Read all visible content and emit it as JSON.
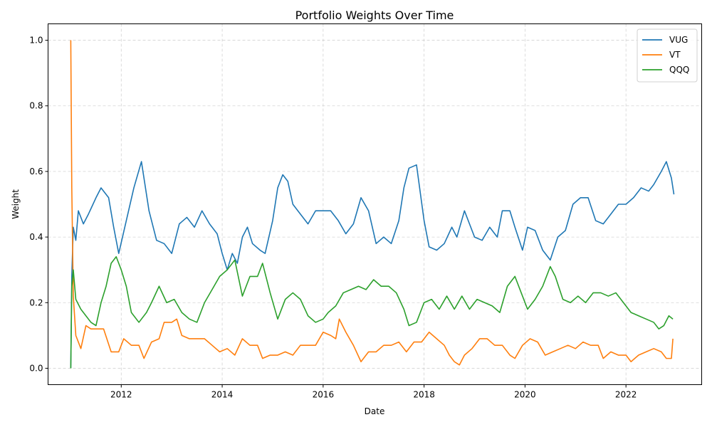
{
  "chart_data": {
    "type": "line",
    "title": "Portfolio Weights Over Time",
    "xlabel": "Date",
    "ylabel": "Weight",
    "xlim": [
      2010.55,
      2023.5
    ],
    "ylim": [
      -0.05,
      1.05
    ],
    "x_ticks": [
      2012,
      2014,
      2016,
      2018,
      2020,
      2022
    ],
    "x_tick_labels": [
      "2012",
      "2014",
      "2016",
      "2018",
      "2020",
      "2022"
    ],
    "y_ticks": [
      0.0,
      0.2,
      0.4,
      0.6,
      0.8,
      1.0
    ],
    "y_tick_labels": [
      "0.0",
      "0.2",
      "0.4",
      "0.6",
      "0.8",
      "1.0"
    ],
    "grid": true,
    "legend_position": "top-right",
    "series": [
      {
        "name": "VUG",
        "color": "#1f77b4",
        "points": [
          [
            2011.0,
            0.0
          ],
          [
            2011.02,
            0.28
          ],
          [
            2011.05,
            0.43
          ],
          [
            2011.1,
            0.39
          ],
          [
            2011.15,
            0.48
          ],
          [
            2011.25,
            0.44
          ],
          [
            2011.35,
            0.47
          ],
          [
            2011.5,
            0.52
          ],
          [
            2011.6,
            0.55
          ],
          [
            2011.75,
            0.52
          ],
          [
            2011.85,
            0.43
          ],
          [
            2011.95,
            0.35
          ],
          [
            2012.1,
            0.45
          ],
          [
            2012.25,
            0.55
          ],
          [
            2012.4,
            0.63
          ],
          [
            2012.55,
            0.48
          ],
          [
            2012.7,
            0.39
          ],
          [
            2012.85,
            0.38
          ],
          [
            2013.0,
            0.35
          ],
          [
            2013.15,
            0.44
          ],
          [
            2013.3,
            0.46
          ],
          [
            2013.45,
            0.43
          ],
          [
            2013.6,
            0.48
          ],
          [
            2013.75,
            0.44
          ],
          [
            2013.9,
            0.41
          ],
          [
            2014.0,
            0.35
          ],
          [
            2014.1,
            0.3
          ],
          [
            2014.2,
            0.35
          ],
          [
            2014.3,
            0.32
          ],
          [
            2014.4,
            0.4
          ],
          [
            2014.5,
            0.43
          ],
          [
            2014.6,
            0.38
          ],
          [
            2014.75,
            0.36
          ],
          [
            2014.85,
            0.35
          ],
          [
            2015.0,
            0.45
          ],
          [
            2015.1,
            0.55
          ],
          [
            2015.2,
            0.59
          ],
          [
            2015.3,
            0.57
          ],
          [
            2015.4,
            0.5
          ],
          [
            2015.55,
            0.47
          ],
          [
            2015.7,
            0.44
          ],
          [
            2015.85,
            0.48
          ],
          [
            2016.0,
            0.48
          ],
          [
            2016.15,
            0.48
          ],
          [
            2016.3,
            0.45
          ],
          [
            2016.45,
            0.41
          ],
          [
            2016.6,
            0.44
          ],
          [
            2016.75,
            0.52
          ],
          [
            2016.9,
            0.48
          ],
          [
            2017.05,
            0.38
          ],
          [
            2017.2,
            0.4
          ],
          [
            2017.35,
            0.38
          ],
          [
            2017.5,
            0.45
          ],
          [
            2017.6,
            0.55
          ],
          [
            2017.7,
            0.61
          ],
          [
            2017.85,
            0.62
          ],
          [
            2018.0,
            0.45
          ],
          [
            2018.1,
            0.37
          ],
          [
            2018.25,
            0.36
          ],
          [
            2018.4,
            0.38
          ],
          [
            2018.55,
            0.43
          ],
          [
            2018.65,
            0.4
          ],
          [
            2018.8,
            0.48
          ],
          [
            2018.9,
            0.44
          ],
          [
            2019.0,
            0.4
          ],
          [
            2019.15,
            0.39
          ],
          [
            2019.3,
            0.43
          ],
          [
            2019.45,
            0.4
          ],
          [
            2019.55,
            0.48
          ],
          [
            2019.7,
            0.48
          ],
          [
            2019.8,
            0.43
          ],
          [
            2019.95,
            0.36
          ],
          [
            2020.05,
            0.43
          ],
          [
            2020.2,
            0.42
          ],
          [
            2020.35,
            0.36
          ],
          [
            2020.5,
            0.33
          ],
          [
            2020.65,
            0.4
          ],
          [
            2020.8,
            0.42
          ],
          [
            2020.95,
            0.5
          ],
          [
            2021.1,
            0.52
          ],
          [
            2021.25,
            0.52
          ],
          [
            2021.4,
            0.45
          ],
          [
            2021.55,
            0.44
          ],
          [
            2021.7,
            0.47
          ],
          [
            2021.85,
            0.5
          ],
          [
            2022.0,
            0.5
          ],
          [
            2022.15,
            0.52
          ],
          [
            2022.3,
            0.55
          ],
          [
            2022.45,
            0.54
          ],
          [
            2022.55,
            0.56
          ],
          [
            2022.7,
            0.6
          ],
          [
            2022.8,
            0.63
          ],
          [
            2022.9,
            0.58
          ],
          [
            2022.95,
            0.53
          ]
        ]
      },
      {
        "name": "VT",
        "color": "#ff7f0e",
        "points": [
          [
            2011.0,
            1.0
          ],
          [
            2011.02,
            0.55
          ],
          [
            2011.05,
            0.22
          ],
          [
            2011.1,
            0.1
          ],
          [
            2011.2,
            0.06
          ],
          [
            2011.3,
            0.13
          ],
          [
            2011.4,
            0.12
          ],
          [
            2011.5,
            0.12
          ],
          [
            2011.65,
            0.12
          ],
          [
            2011.8,
            0.05
          ],
          [
            2011.95,
            0.05
          ],
          [
            2012.05,
            0.09
          ],
          [
            2012.2,
            0.07
          ],
          [
            2012.35,
            0.07
          ],
          [
            2012.45,
            0.03
          ],
          [
            2012.6,
            0.08
          ],
          [
            2012.75,
            0.09
          ],
          [
            2012.85,
            0.14
          ],
          [
            2013.0,
            0.14
          ],
          [
            2013.1,
            0.15
          ],
          [
            2013.2,
            0.1
          ],
          [
            2013.35,
            0.09
          ],
          [
            2013.5,
            0.09
          ],
          [
            2013.65,
            0.09
          ],
          [
            2013.8,
            0.07
          ],
          [
            2013.95,
            0.05
          ],
          [
            2014.1,
            0.06
          ],
          [
            2014.25,
            0.04
          ],
          [
            2014.4,
            0.09
          ],
          [
            2014.55,
            0.07
          ],
          [
            2014.7,
            0.07
          ],
          [
            2014.8,
            0.03
          ],
          [
            2014.95,
            0.04
          ],
          [
            2015.1,
            0.04
          ],
          [
            2015.25,
            0.05
          ],
          [
            2015.4,
            0.04
          ],
          [
            2015.55,
            0.07
          ],
          [
            2015.7,
            0.07
          ],
          [
            2015.85,
            0.07
          ],
          [
            2016.0,
            0.11
          ],
          [
            2016.15,
            0.1
          ],
          [
            2016.25,
            0.09
          ],
          [
            2016.32,
            0.15
          ],
          [
            2016.45,
            0.11
          ],
          [
            2016.6,
            0.07
          ],
          [
            2016.75,
            0.02
          ],
          [
            2016.9,
            0.05
          ],
          [
            2017.05,
            0.05
          ],
          [
            2017.2,
            0.07
          ],
          [
            2017.35,
            0.07
          ],
          [
            2017.5,
            0.08
          ],
          [
            2017.65,
            0.05
          ],
          [
            2017.8,
            0.08
          ],
          [
            2017.95,
            0.08
          ],
          [
            2018.1,
            0.11
          ],
          [
            2018.25,
            0.09
          ],
          [
            2018.4,
            0.07
          ],
          [
            2018.5,
            0.04
          ],
          [
            2018.6,
            0.02
          ],
          [
            2018.7,
            0.01
          ],
          [
            2018.8,
            0.04
          ],
          [
            2018.95,
            0.06
          ],
          [
            2019.1,
            0.09
          ],
          [
            2019.25,
            0.09
          ],
          [
            2019.4,
            0.07
          ],
          [
            2019.55,
            0.07
          ],
          [
            2019.7,
            0.04
          ],
          [
            2019.8,
            0.03
          ],
          [
            2019.95,
            0.07
          ],
          [
            2020.1,
            0.09
          ],
          [
            2020.25,
            0.08
          ],
          [
            2020.4,
            0.04
          ],
          [
            2020.55,
            0.05
          ],
          [
            2020.7,
            0.06
          ],
          [
            2020.85,
            0.07
          ],
          [
            2021.0,
            0.06
          ],
          [
            2021.15,
            0.08
          ],
          [
            2021.3,
            0.07
          ],
          [
            2021.45,
            0.07
          ],
          [
            2021.55,
            0.03
          ],
          [
            2021.7,
            0.05
          ],
          [
            2021.85,
            0.04
          ],
          [
            2022.0,
            0.04
          ],
          [
            2022.1,
            0.02
          ],
          [
            2022.25,
            0.04
          ],
          [
            2022.4,
            0.05
          ],
          [
            2022.55,
            0.06
          ],
          [
            2022.7,
            0.05
          ],
          [
            2022.8,
            0.03
          ],
          [
            2022.9,
            0.03
          ],
          [
            2022.93,
            0.09
          ]
        ]
      },
      {
        "name": "QQQ",
        "color": "#2ca02c",
        "points": [
          [
            2011.0,
            0.0
          ],
          [
            2011.02,
            0.25
          ],
          [
            2011.05,
            0.3
          ],
          [
            2011.1,
            0.21
          ],
          [
            2011.2,
            0.18
          ],
          [
            2011.3,
            0.16
          ],
          [
            2011.4,
            0.14
          ],
          [
            2011.5,
            0.13
          ],
          [
            2011.6,
            0.2
          ],
          [
            2011.7,
            0.25
          ],
          [
            2011.8,
            0.32
          ],
          [
            2011.9,
            0.34
          ],
          [
            2012.0,
            0.3
          ],
          [
            2012.1,
            0.25
          ],
          [
            2012.2,
            0.17
          ],
          [
            2012.35,
            0.14
          ],
          [
            2012.5,
            0.17
          ],
          [
            2012.6,
            0.2
          ],
          [
            2012.75,
            0.25
          ],
          [
            2012.9,
            0.2
          ],
          [
            2013.05,
            0.21
          ],
          [
            2013.2,
            0.17
          ],
          [
            2013.35,
            0.15
          ],
          [
            2013.5,
            0.14
          ],
          [
            2013.65,
            0.2
          ],
          [
            2013.8,
            0.24
          ],
          [
            2013.95,
            0.28
          ],
          [
            2014.1,
            0.3
          ],
          [
            2014.25,
            0.33
          ],
          [
            2014.4,
            0.22
          ],
          [
            2014.55,
            0.28
          ],
          [
            2014.7,
            0.28
          ],
          [
            2014.8,
            0.32
          ],
          [
            2014.95,
            0.23
          ],
          [
            2015.1,
            0.15
          ],
          [
            2015.25,
            0.21
          ],
          [
            2015.4,
            0.23
          ],
          [
            2015.55,
            0.21
          ],
          [
            2015.7,
            0.16
          ],
          [
            2015.85,
            0.14
          ],
          [
            2016.0,
            0.15
          ],
          [
            2016.1,
            0.17
          ],
          [
            2016.25,
            0.19
          ],
          [
            2016.4,
            0.23
          ],
          [
            2016.55,
            0.24
          ],
          [
            2016.7,
            0.25
          ],
          [
            2016.85,
            0.24
          ],
          [
            2017.0,
            0.27
          ],
          [
            2017.15,
            0.25
          ],
          [
            2017.3,
            0.25
          ],
          [
            2017.45,
            0.23
          ],
          [
            2017.6,
            0.18
          ],
          [
            2017.7,
            0.13
          ],
          [
            2017.85,
            0.14
          ],
          [
            2018.0,
            0.2
          ],
          [
            2018.15,
            0.21
          ],
          [
            2018.3,
            0.18
          ],
          [
            2018.45,
            0.22
          ],
          [
            2018.6,
            0.18
          ],
          [
            2018.75,
            0.22
          ],
          [
            2018.9,
            0.18
          ],
          [
            2019.05,
            0.21
          ],
          [
            2019.2,
            0.2
          ],
          [
            2019.35,
            0.19
          ],
          [
            2019.5,
            0.17
          ],
          [
            2019.65,
            0.25
          ],
          [
            2019.8,
            0.28
          ],
          [
            2019.95,
            0.22
          ],
          [
            2020.05,
            0.18
          ],
          [
            2020.2,
            0.21
          ],
          [
            2020.35,
            0.25
          ],
          [
            2020.5,
            0.31
          ],
          [
            2020.6,
            0.28
          ],
          [
            2020.75,
            0.21
          ],
          [
            2020.9,
            0.2
          ],
          [
            2021.05,
            0.22
          ],
          [
            2021.2,
            0.2
          ],
          [
            2021.35,
            0.23
          ],
          [
            2021.5,
            0.23
          ],
          [
            2021.65,
            0.22
          ],
          [
            2021.8,
            0.23
          ],
          [
            2021.95,
            0.2
          ],
          [
            2022.1,
            0.17
          ],
          [
            2022.25,
            0.16
          ],
          [
            2022.4,
            0.15
          ],
          [
            2022.55,
            0.14
          ],
          [
            2022.65,
            0.12
          ],
          [
            2022.75,
            0.13
          ],
          [
            2022.85,
            0.16
          ],
          [
            2022.93,
            0.15
          ]
        ]
      }
    ]
  }
}
